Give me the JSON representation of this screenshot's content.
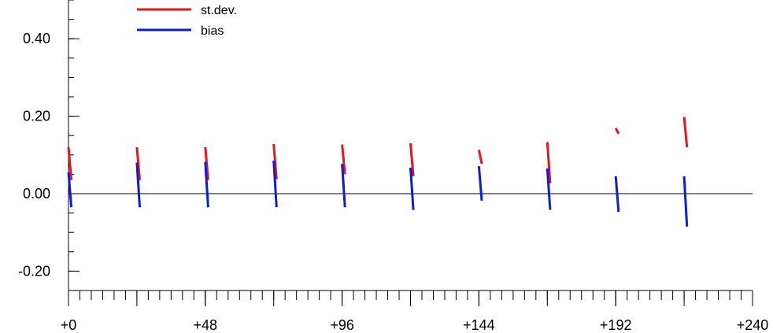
{
  "chart_data": {
    "type": "line",
    "title": "",
    "xlabel": "",
    "ylabel": "",
    "xlim": [
      0,
      240
    ],
    "ylim": [
      -0.25,
      0.5
    ],
    "x_ticks": [
      0,
      48,
      96,
      144,
      192,
      240
    ],
    "x_tick_labels": [
      "+0",
      "+48",
      "+96",
      "+144",
      "+192",
      "+240"
    ],
    "x_minor_step": 4,
    "y_ticks": [
      0.4,
      0.2,
      0.0,
      -0.2
    ],
    "y_tick_labels": [
      "0.40",
      "0.20",
      "0.00",
      "-0.20"
    ],
    "y_minor_step": 0.05,
    "zero_line": true,
    "grid": false,
    "legend_position": "top-left",
    "series": [
      {
        "name": "st.dev.",
        "color": "#e8141b",
        "segments": [
          [
            [
              0.0,
              0.12
            ],
            [
              1.0,
              0.035
            ]
          ],
          [
            [
              24.0,
              0.12
            ],
            [
              25.0,
              0.035
            ]
          ],
          [
            [
              48.0,
              0.12
            ],
            [
              49.0,
              0.035
            ]
          ],
          [
            [
              72.0,
              0.128
            ],
            [
              73.0,
              0.037
            ]
          ],
          [
            [
              96.0,
              0.127
            ],
            [
              97.0,
              0.05
            ]
          ],
          [
            [
              120.0,
              0.13
            ],
            [
              121.0,
              0.045
            ]
          ],
          [
            [
              144.0,
              0.113
            ],
            [
              145.0,
              0.077
            ]
          ],
          [
            [
              168.0,
              0.133
            ],
            [
              169.0,
              0.027
            ]
          ],
          [
            [
              192.0,
              0.169
            ],
            [
              193.0,
              0.155
            ]
          ],
          [
            [
              216.0,
              0.198
            ],
            [
              217.0,
              0.12
            ]
          ]
        ]
      },
      {
        "name": "bias",
        "color": "#0f1bd9",
        "segments": [
          [
            [
              0.0,
              0.055
            ],
            [
              1.0,
              -0.035
            ]
          ],
          [
            [
              24.0,
              0.08
            ],
            [
              25.0,
              -0.035
            ]
          ],
          [
            [
              48.0,
              0.082
            ],
            [
              49.0,
              -0.035
            ]
          ],
          [
            [
              72.0,
              0.085
            ],
            [
              73.0,
              -0.035
            ]
          ],
          [
            [
              96.0,
              0.077
            ],
            [
              97.0,
              -0.035
            ]
          ],
          [
            [
              120.0,
              0.067
            ],
            [
              121.0,
              -0.042
            ]
          ],
          [
            [
              144.0,
              0.071
            ],
            [
              145.0,
              -0.018
            ]
          ],
          [
            [
              168.0,
              0.065
            ],
            [
              169.0,
              -0.042
            ]
          ],
          [
            [
              192.0,
              0.045
            ],
            [
              193.0,
              -0.047
            ]
          ],
          [
            [
              216.0,
              0.045
            ],
            [
              217.0,
              -0.085
            ]
          ]
        ]
      }
    ]
  }
}
